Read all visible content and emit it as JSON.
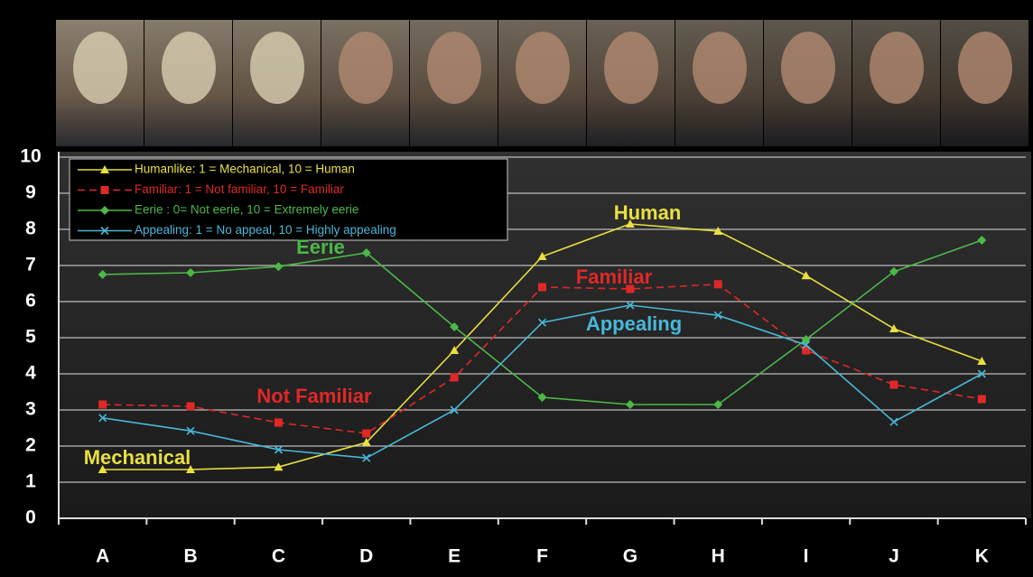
{
  "chart_data": {
    "type": "line",
    "categories": [
      "A",
      "B",
      "C",
      "D",
      "E",
      "F",
      "G",
      "H",
      "I",
      "J",
      "K"
    ],
    "ylim": [
      0,
      10
    ],
    "yticks": [
      0,
      1,
      2,
      3,
      4,
      5,
      6,
      7,
      8,
      9,
      10
    ],
    "grid": true,
    "legend": "top-left",
    "series": [
      {
        "name": "Humanlike: 1 = Mechanical, 10 = Human",
        "color": "#e8e040",
        "marker": "triangle",
        "dashed": false,
        "values": [
          1.35,
          1.35,
          1.42,
          2.1,
          4.65,
          7.25,
          8.15,
          7.95,
          6.72,
          5.25,
          4.35
        ]
      },
      {
        "name": "Familiar: 1 = Not familiar, 10 = Familiar",
        "color": "#e02828",
        "marker": "square",
        "dashed": true,
        "values": [
          3.15,
          3.1,
          2.65,
          2.35,
          3.9,
          6.4,
          6.35,
          6.48,
          4.65,
          3.7,
          3.3
        ]
      },
      {
        "name": "Eerie : 0= Not eerie, 10 = Extremely eerie",
        "color": "#4cb848",
        "marker": "diamond",
        "dashed": false,
        "values": [
          6.75,
          6.8,
          6.97,
          7.35,
          5.3,
          3.35,
          3.15,
          3.15,
          4.95,
          6.83,
          7.7
        ]
      },
      {
        "name": "Appealing: 1 = No appeal, 10 = Highly appealing",
        "color": "#48b8d8",
        "marker": "x",
        "dashed": false,
        "values": [
          2.78,
          2.42,
          1.9,
          1.67,
          3.0,
          5.42,
          5.9,
          5.62,
          4.8,
          2.67,
          4.0
        ]
      }
    ],
    "annotations": [
      {
        "text": "Human",
        "color": "#e8e040"
      },
      {
        "text": "Familiar",
        "color": "#e02828"
      },
      {
        "text": "Eerie",
        "color": "#4cb848"
      },
      {
        "text": "Appealing",
        "color": "#48b8d8"
      },
      {
        "text": "Not Familiar",
        "color": "#e02828"
      },
      {
        "text": "Mechanical",
        "color": "#e8e040"
      }
    ]
  }
}
